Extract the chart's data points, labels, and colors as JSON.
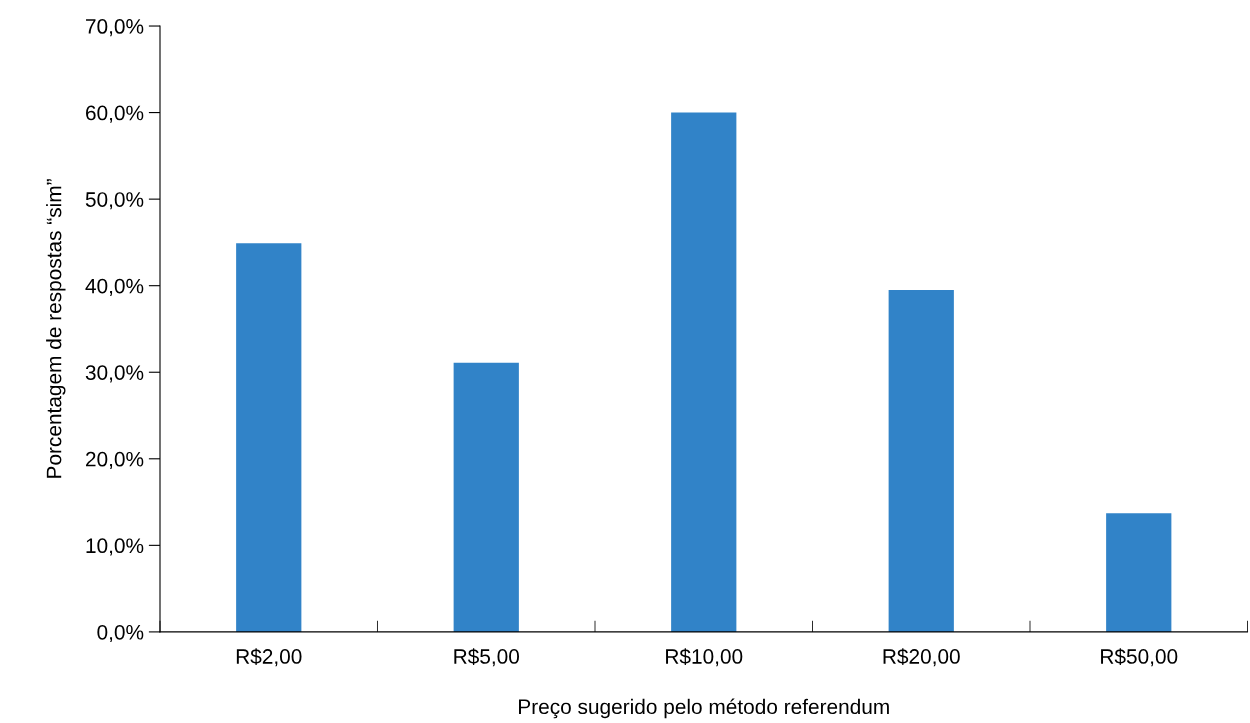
{
  "chart_data": {
    "type": "bar",
    "xlabel": "Preço sugerido pelo método referendum",
    "ylabel": "Porcentagem de respostas “sim”",
    "categories": [
      "R$2,00",
      "R$5,00",
      "R$10,00",
      "R$20,00",
      "R$50,00"
    ],
    "values": [
      44.9,
      31.1,
      60.0,
      39.5,
      13.7
    ],
    "color": "#3183c8",
    "ylim": [
      0,
      70
    ],
    "yticks": [
      {
        "value": 0,
        "label": "0,0%"
      },
      {
        "value": 10,
        "label": "10,0%"
      },
      {
        "value": 20,
        "label": "20,0%"
      },
      {
        "value": 30,
        "label": "30,0%"
      },
      {
        "value": 40,
        "label": "40,0%"
      },
      {
        "value": 50,
        "label": "50,0%"
      },
      {
        "value": 60,
        "label": "60,0%"
      },
      {
        "value": 70,
        "label": "70,0%"
      }
    ],
    "grid": false,
    "legend": false
  }
}
